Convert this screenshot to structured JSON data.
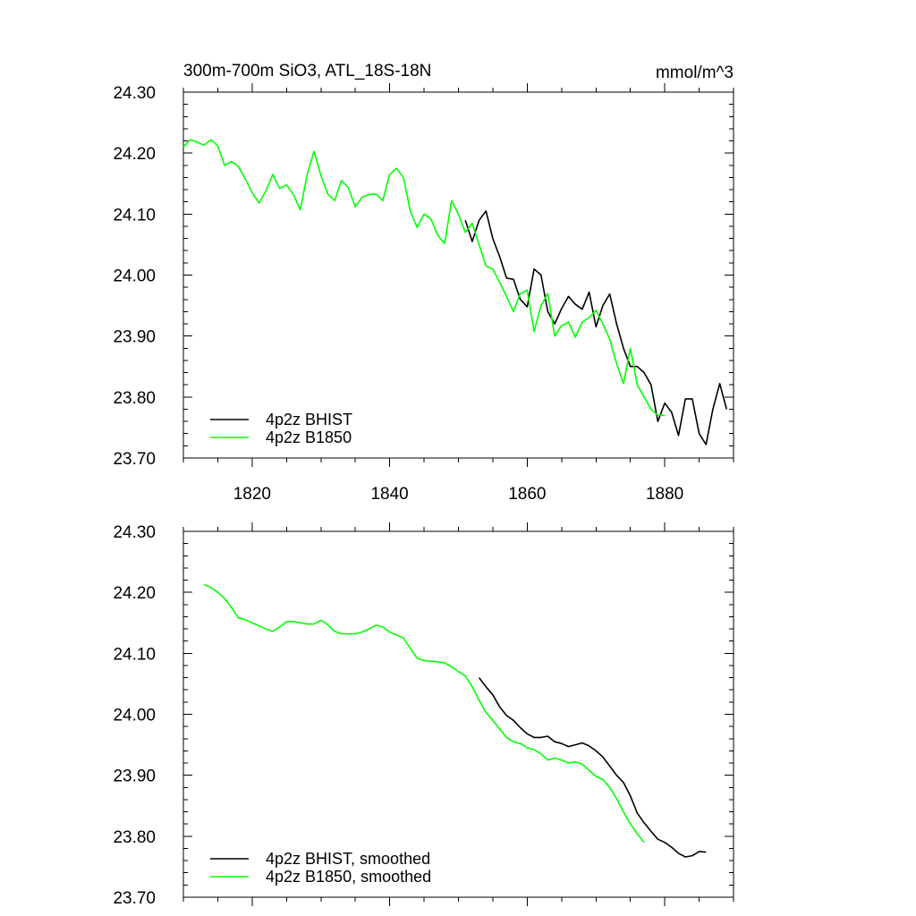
{
  "header": {
    "title": "300m-700m SiO3, ATL_18S-18N",
    "units": "mmol/m^3"
  },
  "colors": {
    "bhist": "#000000",
    "b1850": "#00ff00",
    "axis": "#000000"
  },
  "chart_data": [
    {
      "type": "line",
      "title": "300m-700m SiO3, ATL_18S-18N",
      "ylabel": "mmol/m^3",
      "xlim": [
        1810,
        1890
      ],
      "ylim": [
        23.7,
        24.3
      ],
      "yticks": [
        "24.30",
        "24.20",
        "24.10",
        "24.00",
        "23.90",
        "23.80",
        "23.70"
      ],
      "xticks": [
        "1820",
        "1840",
        "1860",
        "1880"
      ],
      "legend": "bottom-left",
      "series": [
        {
          "name": "4p2z BHIST",
          "color": "#000000",
          "x": [
            1851,
            1852,
            1853,
            1854,
            1855,
            1856,
            1857,
            1858,
            1859,
            1860,
            1861,
            1862,
            1863,
            1864,
            1865,
            1866,
            1867,
            1868,
            1869,
            1870,
            1871,
            1872,
            1873,
            1874,
            1875,
            1876,
            1877,
            1878,
            1879,
            1880,
            1881,
            1882,
            1883,
            1884,
            1885,
            1886,
            1887,
            1888,
            1889
          ],
          "y": [
            24.09,
            24.055,
            24.09,
            24.105,
            24.06,
            24.03,
            23.995,
            23.993,
            23.96,
            23.948,
            24.01,
            24.0,
            23.94,
            23.92,
            23.945,
            23.965,
            23.952,
            23.944,
            23.972,
            23.915,
            23.95,
            23.969,
            23.92,
            23.88,
            23.85,
            23.85,
            23.84,
            23.82,
            23.76,
            23.79,
            23.775,
            23.737,
            23.797,
            23.797,
            23.74,
            23.722,
            23.78,
            23.822,
            23.78
          ]
        },
        {
          "name": "4p2z B1850",
          "color": "#00ff00",
          "x": [
            1810,
            1811,
            1812,
            1813,
            1814,
            1815,
            1816,
            1817,
            1818,
            1819,
            1820,
            1821,
            1822,
            1823,
            1824,
            1825,
            1826,
            1827,
            1828,
            1829,
            1830,
            1831,
            1832,
            1833,
            1834,
            1835,
            1836,
            1837,
            1838,
            1839,
            1840,
            1841,
            1842,
            1843,
            1844,
            1845,
            1846,
            1847,
            1848,
            1849,
            1850,
            1851,
            1852,
            1853,
            1854,
            1855,
            1856,
            1857,
            1858,
            1859,
            1860,
            1861,
            1862,
            1863,
            1864,
            1865,
            1866,
            1867,
            1868,
            1869,
            1870,
            1871,
            1872,
            1873,
            1874,
            1875,
            1876,
            1877,
            1878,
            1879,
            1880
          ],
          "y": [
            24.21,
            24.222,
            24.218,
            24.213,
            24.222,
            24.212,
            24.18,
            24.186,
            24.178,
            24.158,
            24.135,
            24.118,
            24.138,
            24.165,
            24.142,
            24.148,
            24.132,
            24.107,
            24.165,
            24.203,
            24.163,
            24.133,
            24.122,
            24.155,
            24.143,
            24.112,
            24.128,
            24.132,
            24.133,
            24.122,
            24.165,
            24.175,
            24.16,
            24.105,
            24.078,
            24.1,
            24.092,
            24.065,
            24.052,
            24.122,
            24.1,
            24.07,
            24.085,
            24.05,
            24.015,
            24.01,
            23.988,
            23.965,
            23.94,
            23.97,
            23.975,
            23.907,
            23.95,
            23.97,
            23.9,
            23.917,
            23.923,
            23.898,
            23.923,
            23.93,
            23.942,
            23.92,
            23.895,
            23.855,
            23.822,
            23.88,
            23.82,
            23.8,
            23.78,
            23.77,
            23.77
          ]
        }
      ]
    },
    {
      "type": "line",
      "xlim": [
        1810,
        1890
      ],
      "ylim": [
        23.7,
        24.3
      ],
      "yticks": [
        "24.30",
        "24.20",
        "24.10",
        "24.00",
        "23.90",
        "23.80",
        "23.70"
      ],
      "legend": "bottom-left",
      "series": [
        {
          "name": "4p2z BHIST, smoothed",
          "color": "#000000",
          "x": [
            1853,
            1854,
            1855,
            1856,
            1857,
            1858,
            1859,
            1860,
            1861,
            1862,
            1863,
            1864,
            1865,
            1866,
            1867,
            1868,
            1869,
            1870,
            1871,
            1872,
            1873,
            1874,
            1875,
            1876,
            1877,
            1878,
            1879,
            1880,
            1881,
            1882,
            1883,
            1884,
            1885,
            1886
          ],
          "y": [
            24.06,
            24.045,
            24.032,
            24.012,
            23.998,
            23.99,
            23.978,
            23.968,
            23.962,
            23.962,
            23.964,
            23.955,
            23.952,
            23.947,
            23.95,
            23.953,
            23.948,
            23.94,
            23.93,
            23.915,
            23.9,
            23.888,
            23.866,
            23.838,
            23.822,
            23.808,
            23.795,
            23.79,
            23.782,
            23.772,
            23.766,
            23.768,
            23.775,
            23.774
          ]
        },
        {
          "name": "4p2z B1850, smoothed",
          "color": "#00ff00",
          "x": [
            1813,
            1814,
            1815,
            1816,
            1817,
            1818,
            1819,
            1820,
            1821,
            1822,
            1823,
            1824,
            1825,
            1826,
            1827,
            1828,
            1829,
            1830,
            1831,
            1832,
            1833,
            1834,
            1835,
            1836,
            1837,
            1838,
            1839,
            1840,
            1841,
            1842,
            1843,
            1844,
            1845,
            1846,
            1847,
            1848,
            1849,
            1850,
            1851,
            1852,
            1853,
            1854,
            1855,
            1856,
            1857,
            1858,
            1859,
            1860,
            1861,
            1862,
            1863,
            1864,
            1865,
            1866,
            1867,
            1868,
            1869,
            1870,
            1871,
            1872,
            1873,
            1874,
            1875,
            1876,
            1877
          ],
          "y": [
            24.213,
            24.208,
            24.2,
            24.19,
            24.175,
            24.158,
            24.155,
            24.15,
            24.145,
            24.14,
            24.136,
            24.143,
            24.152,
            24.152,
            24.15,
            24.148,
            24.148,
            24.154,
            24.147,
            24.136,
            24.132,
            24.132,
            24.132,
            24.135,
            24.14,
            24.146,
            24.143,
            24.135,
            24.13,
            24.125,
            24.108,
            24.092,
            24.088,
            24.087,
            24.086,
            24.084,
            24.078,
            24.07,
            24.063,
            24.045,
            24.023,
            24.003,
            23.99,
            23.976,
            23.962,
            23.955,
            23.952,
            23.945,
            23.942,
            23.935,
            23.925,
            23.928,
            23.925,
            23.92,
            23.922,
            23.918,
            23.908,
            23.898,
            23.893,
            23.88,
            23.862,
            23.84,
            23.82,
            23.804,
            23.79
          ]
        }
      ]
    }
  ]
}
